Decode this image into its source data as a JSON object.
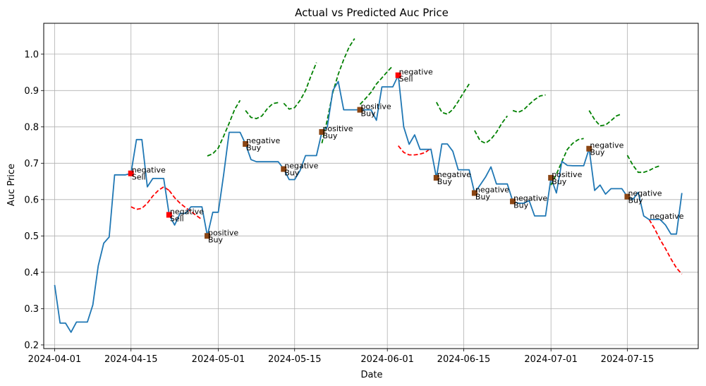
{
  "chart_data": {
    "type": "line",
    "title": "Actual vs Predicted Auc Price",
    "xlabel": "Date",
    "ylabel": "Auc Price",
    "grid": true,
    "xlim": [
      "2024-03-30",
      "2024-07-28"
    ],
    "ylim": [
      0.19,
      1.085
    ],
    "x_ticks": [
      "2024-04-01",
      "2024-04-15",
      "2024-05-01",
      "2024-05-15",
      "2024-06-01",
      "2024-06-15",
      "2024-07-01",
      "2024-07-15"
    ],
    "y_ticks": [
      0.2,
      0.3,
      0.4,
      0.5,
      0.6,
      0.7,
      0.8,
      0.9,
      1.0
    ],
    "y_tick_labels": [
      "0.2",
      "0.3",
      "0.4",
      "0.5",
      "0.6",
      "0.7",
      "0.8",
      "0.9",
      "1.0"
    ],
    "colors": {
      "actual": "#1f77b4",
      "positive": "#008000",
      "negative": "#ff0000",
      "buy_marker": "#8b4513",
      "sell_marker": "#ff0000"
    },
    "actual": [
      [
        "2024-04-01",
        0.365
      ],
      [
        "2024-04-02",
        0.26
      ],
      [
        "2024-04-03",
        0.26
      ],
      [
        "2024-04-04",
        0.235
      ],
      [
        "2024-04-05",
        0.263
      ],
      [
        "2024-04-06",
        0.263
      ],
      [
        "2024-04-07",
        0.263
      ],
      [
        "2024-04-08",
        0.31
      ],
      [
        "2024-04-09",
        0.418
      ],
      [
        "2024-04-10",
        0.48
      ],
      [
        "2024-04-11",
        0.497
      ],
      [
        "2024-04-12",
        0.668
      ],
      [
        "2024-04-13",
        0.668
      ],
      [
        "2024-04-14",
        0.668
      ],
      [
        "2024-04-15",
        0.672
      ],
      [
        "2024-04-16",
        0.765
      ],
      [
        "2024-04-17",
        0.765
      ],
      [
        "2024-04-18",
        0.635
      ],
      [
        "2024-04-19",
        0.658
      ],
      [
        "2024-04-20",
        0.658
      ],
      [
        "2024-04-21",
        0.658
      ],
      [
        "2024-04-22",
        0.558
      ],
      [
        "2024-04-23",
        0.53
      ],
      [
        "2024-04-24",
        0.562
      ],
      [
        "2024-04-25",
        0.562
      ],
      [
        "2024-04-26",
        0.58
      ],
      [
        "2024-04-27",
        0.58
      ],
      [
        "2024-04-28",
        0.58
      ],
      [
        "2024-04-29",
        0.5
      ],
      [
        "2024-04-30",
        0.565
      ],
      [
        "2024-05-01",
        0.565
      ],
      [
        "2024-05-02",
        0.67
      ],
      [
        "2024-05-03",
        0.785
      ],
      [
        "2024-05-04",
        0.785
      ],
      [
        "2024-05-05",
        0.785
      ],
      [
        "2024-05-06",
        0.753
      ],
      [
        "2024-05-07",
        0.71
      ],
      [
        "2024-05-08",
        0.704
      ],
      [
        "2024-05-09",
        0.704
      ],
      [
        "2024-05-10",
        0.704
      ],
      [
        "2024-05-11",
        0.704
      ],
      [
        "2024-05-12",
        0.704
      ],
      [
        "2024-05-13",
        0.684
      ],
      [
        "2024-05-14",
        0.655
      ],
      [
        "2024-05-15",
        0.655
      ],
      [
        "2024-05-16",
        0.68
      ],
      [
        "2024-05-17",
        0.721
      ],
      [
        "2024-05-18",
        0.721
      ],
      [
        "2024-05-19",
        0.721
      ],
      [
        "2024-05-20",
        0.786
      ],
      [
        "2024-05-21",
        0.8
      ],
      [
        "2024-05-22",
        0.9
      ],
      [
        "2024-05-23",
        0.925
      ],
      [
        "2024-05-24",
        0.847
      ],
      [
        "2024-05-25",
        0.847
      ],
      [
        "2024-05-26",
        0.847
      ],
      [
        "2024-05-27",
        0.847
      ],
      [
        "2024-05-28",
        0.847
      ],
      [
        "2024-05-29",
        0.847
      ],
      [
        "2024-05-30",
        0.818
      ],
      [
        "2024-05-31",
        0.91
      ],
      [
        "2024-06-01",
        0.91
      ],
      [
        "2024-06-02",
        0.91
      ],
      [
        "2024-06-03",
        0.942
      ],
      [
        "2024-06-04",
        0.8
      ],
      [
        "2024-06-05",
        0.752
      ],
      [
        "2024-06-06",
        0.778
      ],
      [
        "2024-06-07",
        0.738
      ],
      [
        "2024-06-08",
        0.738
      ],
      [
        "2024-06-09",
        0.738
      ],
      [
        "2024-06-10",
        0.66
      ],
      [
        "2024-06-11",
        0.753
      ],
      [
        "2024-06-12",
        0.753
      ],
      [
        "2024-06-13",
        0.733
      ],
      [
        "2024-06-14",
        0.682
      ],
      [
        "2024-06-15",
        0.682
      ],
      [
        "2024-06-16",
        0.682
      ],
      [
        "2024-06-17",
        0.618
      ],
      [
        "2024-06-18",
        0.64
      ],
      [
        "2024-06-19",
        0.662
      ],
      [
        "2024-06-20",
        0.69
      ],
      [
        "2024-06-21",
        0.643
      ],
      [
        "2024-06-22",
        0.643
      ],
      [
        "2024-06-23",
        0.643
      ],
      [
        "2024-06-24",
        0.595
      ],
      [
        "2024-06-25",
        0.59
      ],
      [
        "2024-06-26",
        0.59
      ],
      [
        "2024-06-27",
        0.597
      ],
      [
        "2024-06-28",
        0.555
      ],
      [
        "2024-06-29",
        0.555
      ],
      [
        "2024-06-30",
        0.555
      ],
      [
        "2024-07-01",
        0.66
      ],
      [
        "2024-07-02",
        0.618
      ],
      [
        "2024-07-03",
        0.705
      ],
      [
        "2024-07-04",
        0.694
      ],
      [
        "2024-07-05",
        0.693
      ],
      [
        "2024-07-06",
        0.693
      ],
      [
        "2024-07-07",
        0.693
      ],
      [
        "2024-07-08",
        0.74
      ],
      [
        "2024-07-09",
        0.625
      ],
      [
        "2024-07-10",
        0.64
      ],
      [
        "2024-07-11",
        0.615
      ],
      [
        "2024-07-12",
        0.63
      ],
      [
        "2024-07-13",
        0.63
      ],
      [
        "2024-07-14",
        0.63
      ],
      [
        "2024-07-15",
        0.608
      ],
      [
        "2024-07-16",
        0.6
      ],
      [
        "2024-07-17",
        0.62
      ],
      [
        "2024-07-18",
        0.555
      ],
      [
        "2024-07-19",
        0.545
      ],
      [
        "2024-07-20",
        0.545
      ],
      [
        "2024-07-21",
        0.545
      ],
      [
        "2024-07-22",
        0.53
      ],
      [
        "2024-07-23",
        0.505
      ],
      [
        "2024-07-24",
        0.505
      ],
      [
        "2024-07-25",
        0.618
      ]
    ],
    "predicted": [
      {
        "sentiment": "negative",
        "points": [
          [
            "2024-04-15",
            0.58
          ],
          [
            "2024-04-16",
            0.573
          ],
          [
            "2024-04-17",
            0.576
          ],
          [
            "2024-04-18",
            0.59
          ],
          [
            "2024-04-19",
            0.61
          ],
          [
            "2024-04-20",
            0.625
          ],
          [
            "2024-04-21",
            0.635
          ],
          [
            "2024-04-22",
            0.625
          ]
        ]
      },
      {
        "sentiment": "negative",
        "points": [
          [
            "2024-04-22",
            0.625
          ],
          [
            "2024-04-23",
            0.605
          ],
          [
            "2024-04-24",
            0.59
          ],
          [
            "2024-04-25",
            0.578
          ],
          [
            "2024-04-26",
            0.567
          ],
          [
            "2024-04-27",
            0.556
          ],
          [
            "2024-04-28",
            0.545
          ]
        ]
      },
      {
        "sentiment": "positive",
        "points": [
          [
            "2024-04-29",
            0.72
          ],
          [
            "2024-04-30",
            0.726
          ],
          [
            "2024-05-01",
            0.742
          ],
          [
            "2024-05-02",
            0.775
          ],
          [
            "2024-05-03",
            0.81
          ],
          [
            "2024-05-04",
            0.848
          ],
          [
            "2024-05-05",
            0.873
          ]
        ]
      },
      {
        "sentiment": "positive",
        "points": [
          [
            "2024-05-06",
            0.845
          ],
          [
            "2024-05-07",
            0.826
          ],
          [
            "2024-05-08",
            0.823
          ],
          [
            "2024-05-09",
            0.83
          ],
          [
            "2024-05-10",
            0.85
          ],
          [
            "2024-05-11",
            0.864
          ],
          [
            "2024-05-12",
            0.867
          ]
        ]
      },
      {
        "sentiment": "positive",
        "points": [
          [
            "2024-05-13",
            0.865
          ],
          [
            "2024-05-14",
            0.849
          ],
          [
            "2024-05-15",
            0.853
          ],
          [
            "2024-05-16",
            0.873
          ],
          [
            "2024-05-17",
            0.9
          ],
          [
            "2024-05-18",
            0.94
          ],
          [
            "2024-05-19",
            0.977
          ]
        ]
      },
      {
        "sentiment": "positive",
        "points": [
          [
            "2024-05-20",
            0.755
          ],
          [
            "2024-05-21",
            0.82
          ],
          [
            "2024-05-22",
            0.895
          ],
          [
            "2024-05-23",
            0.945
          ],
          [
            "2024-05-24",
            0.985
          ],
          [
            "2024-05-25",
            1.02
          ],
          [
            "2024-05-26",
            1.043
          ]
        ]
      },
      {
        "sentiment": "positive",
        "points": [
          [
            "2024-05-27",
            0.862
          ],
          [
            "2024-05-28",
            0.878
          ],
          [
            "2024-05-29",
            0.895
          ],
          [
            "2024-05-30",
            0.918
          ],
          [
            "2024-05-31",
            0.935
          ],
          [
            "2024-06-01",
            0.952
          ],
          [
            "2024-06-02",
            0.968
          ]
        ]
      },
      {
        "sentiment": "negative",
        "points": [
          [
            "2024-06-03",
            0.748
          ],
          [
            "2024-06-04",
            0.73
          ],
          [
            "2024-06-05",
            0.723
          ],
          [
            "2024-06-06",
            0.723
          ],
          [
            "2024-06-07",
            0.725
          ],
          [
            "2024-06-08",
            0.73
          ],
          [
            "2024-06-09",
            0.742
          ]
        ]
      },
      {
        "sentiment": "positive",
        "points": [
          [
            "2024-06-10",
            0.868
          ],
          [
            "2024-06-11",
            0.84
          ],
          [
            "2024-06-12",
            0.835
          ],
          [
            "2024-06-13",
            0.848
          ],
          [
            "2024-06-14",
            0.87
          ],
          [
            "2024-06-15",
            0.895
          ],
          [
            "2024-06-16",
            0.918
          ]
        ]
      },
      {
        "sentiment": "positive",
        "points": [
          [
            "2024-06-17",
            0.79
          ],
          [
            "2024-06-18",
            0.762
          ],
          [
            "2024-06-19",
            0.755
          ],
          [
            "2024-06-20",
            0.766
          ],
          [
            "2024-06-21",
            0.785
          ],
          [
            "2024-06-22",
            0.81
          ],
          [
            "2024-06-23",
            0.83
          ]
        ]
      },
      {
        "sentiment": "positive",
        "points": [
          [
            "2024-06-24",
            0.845
          ],
          [
            "2024-06-25",
            0.84
          ],
          [
            "2024-06-26",
            0.847
          ],
          [
            "2024-06-27",
            0.862
          ],
          [
            "2024-06-28",
            0.875
          ],
          [
            "2024-06-29",
            0.885
          ],
          [
            "2024-06-30",
            0.888
          ]
        ]
      },
      {
        "sentiment": "positive",
        "points": [
          [
            "2024-07-01",
            0.64
          ],
          [
            "2024-07-02",
            0.67
          ],
          [
            "2024-07-03",
            0.705
          ],
          [
            "2024-07-04",
            0.738
          ],
          [
            "2024-07-05",
            0.755
          ],
          [
            "2024-07-06",
            0.765
          ],
          [
            "2024-07-07",
            0.768
          ]
        ]
      },
      {
        "sentiment": "positive",
        "points": [
          [
            "2024-07-08",
            0.845
          ],
          [
            "2024-07-09",
            0.82
          ],
          [
            "2024-07-10",
            0.803
          ],
          [
            "2024-07-11",
            0.805
          ],
          [
            "2024-07-12",
            0.817
          ],
          [
            "2024-07-13",
            0.83
          ],
          [
            "2024-07-14",
            0.836
          ]
        ]
      },
      {
        "sentiment": "positive",
        "points": [
          [
            "2024-07-15",
            0.722
          ],
          [
            "2024-07-16",
            0.695
          ],
          [
            "2024-07-17",
            0.675
          ],
          [
            "2024-07-18",
            0.675
          ],
          [
            "2024-07-19",
            0.68
          ],
          [
            "2024-07-20",
            0.688
          ],
          [
            "2024-07-21",
            0.693
          ]
        ]
      },
      {
        "sentiment": "negative",
        "points": [
          [
            "2024-07-19",
            0.545
          ],
          [
            "2024-07-20",
            0.52
          ],
          [
            "2024-07-21",
            0.49
          ],
          [
            "2024-07-22",
            0.465
          ],
          [
            "2024-07-23",
            0.437
          ],
          [
            "2024-07-24",
            0.412
          ],
          [
            "2024-07-25",
            0.395
          ]
        ]
      }
    ],
    "annotations": [
      {
        "date": "2024-04-15",
        "y": 0.672,
        "sentiment": "negative",
        "action": "Sell"
      },
      {
        "date": "2024-04-22",
        "y": 0.558,
        "sentiment": "negative",
        "action": "Sell"
      },
      {
        "date": "2024-04-29",
        "y": 0.5,
        "sentiment": "positive",
        "action": "Buy"
      },
      {
        "date": "2024-05-06",
        "y": 0.753,
        "sentiment": "negative",
        "action": "Buy"
      },
      {
        "date": "2024-05-13",
        "y": 0.684,
        "sentiment": "negative",
        "action": "Buy"
      },
      {
        "date": "2024-05-20",
        "y": 0.786,
        "sentiment": "positive",
        "action": "Buy"
      },
      {
        "date": "2024-05-27",
        "y": 0.847,
        "sentiment": "positive",
        "action": "Buy"
      },
      {
        "date": "2024-06-03",
        "y": 0.942,
        "sentiment": "negative",
        "action": "Sell"
      },
      {
        "date": "2024-06-10",
        "y": 0.66,
        "sentiment": "negative",
        "action": "Buy"
      },
      {
        "date": "2024-06-17",
        "y": 0.618,
        "sentiment": "negative",
        "action": "Buy"
      },
      {
        "date": "2024-06-24",
        "y": 0.595,
        "sentiment": "negative",
        "action": "Buy"
      },
      {
        "date": "2024-07-01",
        "y": 0.66,
        "sentiment": "positive",
        "action": "Buy"
      },
      {
        "date": "2024-07-08",
        "y": 0.74,
        "sentiment": "negative",
        "action": "Buy"
      },
      {
        "date": "2024-07-15",
        "y": 0.608,
        "sentiment": "negative",
        "action": "Buy"
      },
      {
        "date": "2024-07-19",
        "y": 0.545,
        "sentiment": "negative",
        "action": ""
      }
    ]
  }
}
